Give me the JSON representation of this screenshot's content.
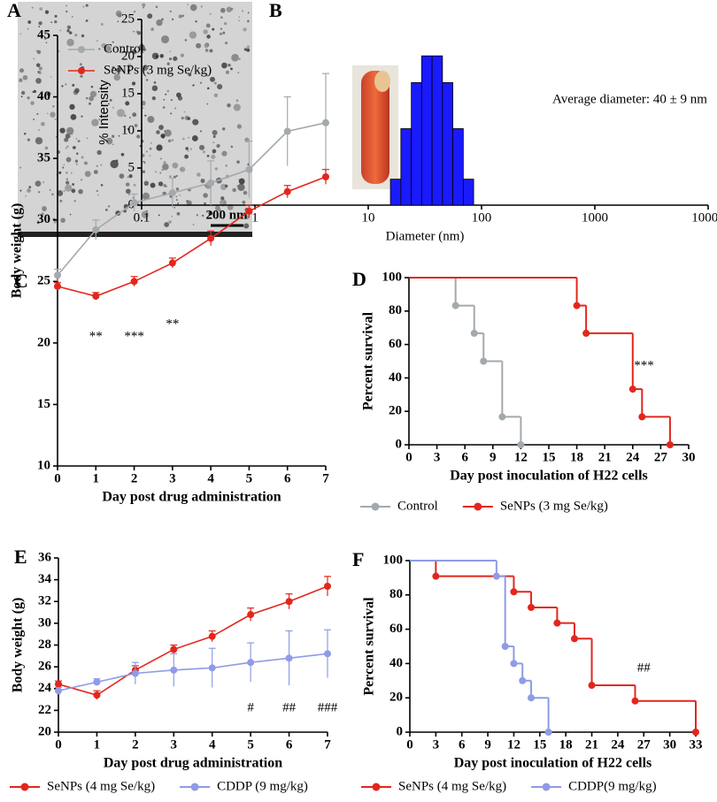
{
  "chart_data": [
    {
      "type": "image",
      "panel": "A",
      "scale_bar": "200 nm"
    },
    {
      "type": "histogram",
      "panel": "B",
      "xlabel": "Diameter (nm)",
      "ylabel": "% Intensity",
      "annotation": "Average diameter: 40 ± 9 nm",
      "log_x": true,
      "color": "#1a1aff",
      "bins": [
        15.7,
        19.4,
        24.0,
        29.6,
        36.6,
        45.2,
        55.8,
        69.0,
        85.2
      ],
      "counts": [
        3.5,
        10.3,
        16.5,
        20.1,
        20.1,
        16.5,
        10.3,
        3.5
      ],
      "xlim": [
        0.1,
        10000
      ],
      "xticks": [
        0.1,
        1,
        10,
        100,
        1000,
        10000
      ],
      "ylim": [
        0,
        25
      ],
      "yticks": [
        0,
        5,
        10,
        15,
        20,
        25
      ]
    },
    {
      "type": "line",
      "panel": "C",
      "xlabel": "Day post drug administration",
      "ylabel": "Body weight (g)",
      "legend": "upper left",
      "x": [
        0,
        1,
        2,
        3,
        4,
        5,
        6,
        7
      ],
      "xlim": [
        0,
        7
      ],
      "xticks": [
        0,
        1,
        2,
        3,
        4,
        5,
        6,
        7
      ],
      "ylim": [
        10,
        45
      ],
      "yticks": [
        10,
        15,
        20,
        25,
        30,
        35,
        40,
        45
      ],
      "annotations": [
        "**",
        "***",
        "**"
      ],
      "series": [
        {
          "name": "Control",
          "color": "#a3a9ad",
          "values": [
            25.5,
            29.2,
            31.4,
            32.2,
            33.0,
            34.1,
            37.2,
            37.9
          ],
          "errors": [
            0.5,
            0.8,
            0.7,
            1.2,
            1.8,
            2.3,
            2.8,
            4.0
          ]
        },
        {
          "name": "SeNPs (3 mg Se/kg)",
          "color": "#e3261c",
          "values": [
            24.6,
            23.8,
            25.0,
            26.5,
            28.5,
            30.7,
            32.3,
            33.5
          ],
          "errors": [
            0.3,
            0.3,
            0.4,
            0.4,
            0.6,
            0.5,
            0.5,
            0.6
          ]
        }
      ]
    },
    {
      "type": "survival",
      "panel": "D",
      "xlabel": "Day post inoculation of H22 cells",
      "ylabel": "Percent survival",
      "legend": "below",
      "xlim": [
        0,
        30
      ],
      "xticks": [
        0,
        3,
        6,
        9,
        12,
        15,
        18,
        21,
        24,
        27,
        30
      ],
      "ylim": [
        0,
        100
      ],
      "yticks": [
        0,
        20,
        40,
        60,
        80,
        100
      ],
      "annotations": [
        "***"
      ],
      "series": [
        {
          "name": "Control",
          "color": "#a3a9ad",
          "x": [
            0,
            5,
            7,
            8,
            10,
            12
          ],
          "values": [
            100,
            83.3,
            66.7,
            50,
            16.7,
            0
          ]
        },
        {
          "name": "SeNPs (3 mg Se/kg)",
          "color": "#e3261c",
          "x": [
            0,
            18,
            19,
            24,
            25,
            28
          ],
          "values": [
            100,
            83.3,
            66.7,
            33.3,
            16.7,
            0
          ]
        }
      ]
    },
    {
      "type": "line",
      "panel": "E",
      "xlabel": "Day post drug administration",
      "ylabel": "Body weight (g)",
      "legend": "below",
      "x": [
        0,
        1,
        2,
        3,
        4,
        5,
        6,
        7
      ],
      "xlim": [
        0,
        7
      ],
      "xticks": [
        0,
        1,
        2,
        3,
        4,
        5,
        6,
        7
      ],
      "ylim": [
        20,
        36
      ],
      "yticks": [
        20,
        22,
        24,
        26,
        28,
        30,
        32,
        34,
        36
      ],
      "annotations": [
        "#",
        "##",
        "###"
      ],
      "series": [
        {
          "name": "SeNPs (4 mg Se/kg)",
          "color": "#e3261c",
          "values": [
            24.4,
            23.4,
            25.7,
            27.6,
            28.8,
            30.8,
            32.0,
            33.4
          ],
          "errors": [
            0.3,
            0.4,
            0.4,
            0.4,
            0.5,
            0.6,
            0.7,
            0.9
          ]
        },
        {
          "name": "CDDP (9 mg/kg)",
          "color": "#8f9be6",
          "values": [
            23.8,
            24.6,
            25.4,
            25.7,
            25.9,
            26.4,
            26.8,
            27.2
          ],
          "errors": [
            0.3,
            0.3,
            1.0,
            1.5,
            1.8,
            1.8,
            2.5,
            2.2
          ]
        }
      ]
    },
    {
      "type": "survival",
      "panel": "F",
      "xlabel": "Day post inoculation of H22 cells",
      "ylabel": "Percent survival",
      "legend": "below",
      "xlim": [
        0,
        33
      ],
      "xticks": [
        0,
        3,
        6,
        9,
        12,
        15,
        18,
        21,
        24,
        27,
        30,
        33
      ],
      "ylim": [
        0,
        100
      ],
      "yticks": [
        0,
        20,
        40,
        60,
        80,
        100
      ],
      "annotations": [
        "##"
      ],
      "series": [
        {
          "name": "SeNPs (4 mg Se/kg)",
          "color": "#e3261c",
          "x": [
            0,
            3,
            12,
            14,
            17,
            19,
            21,
            26,
            33
          ],
          "values": [
            100,
            90.9,
            81.8,
            72.7,
            63.6,
            54.5,
            27.3,
            18.2,
            0
          ]
        },
        {
          "name": "CDDP(9 mg/kg)",
          "color": "#8f9be6",
          "x": [
            0,
            10,
            11,
            12,
            13,
            14,
            16
          ],
          "values": [
            100,
            90.9,
            50,
            40,
            30,
            20,
            0
          ]
        }
      ]
    }
  ]
}
